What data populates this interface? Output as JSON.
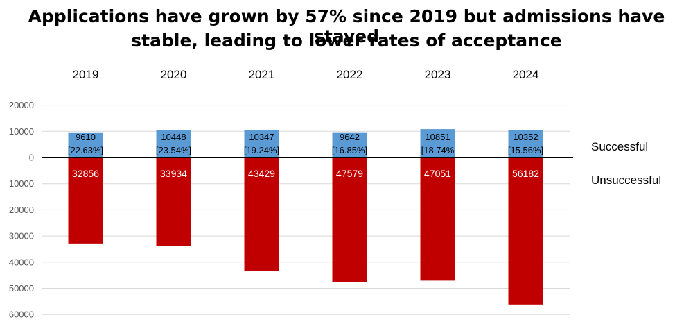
{
  "title_line1": "Applications have grown by 57% since 2019 but admissions have stayed",
  "title_line2": "stable, leading to lower rates of acceptance",
  "chart_data": {
    "type": "bar",
    "title": "Applications have grown by 57% since 2019 but admissions have stayed stable, leading to lower rates of acceptance",
    "categories": [
      "2019",
      "2020",
      "2021",
      "2022",
      "2023",
      "2024"
    ],
    "series": [
      {
        "name": "Successful",
        "values": [
          9610,
          10448,
          10347,
          9642,
          10851,
          10352
        ],
        "value_labels": [
          "9610",
          "10448",
          "10347",
          "9642",
          "10851",
          "10352"
        ],
        "percent_labels": [
          "[22.63%]",
          "[23.54%]",
          "[19.24%]",
          "[16.85%]",
          "[18.74%",
          "[15.56%]"
        ],
        "color": "#5b9bd5",
        "direction": "up"
      },
      {
        "name": "Unsuccessful",
        "values": [
          32856,
          33934,
          43429,
          47579,
          47051,
          56182
        ],
        "value_labels": [
          "32856",
          "33934",
          "43429",
          "47579",
          "47051",
          "56182"
        ],
        "color": "#c00000",
        "direction": "down"
      }
    ],
    "y_tick_labels": [
      "20000",
      "10000",
      "0",
      "10000",
      "20000",
      "30000",
      "40000",
      "50000",
      "60000"
    ],
    "y_tick_values": [
      20000,
      10000,
      0,
      -10000,
      -20000,
      -30000,
      -40000,
      -50000,
      -60000
    ],
    "ylim": [
      -60000,
      20000
    ],
    "grid": true,
    "legend_position": "right",
    "category_axis_position": "top"
  }
}
